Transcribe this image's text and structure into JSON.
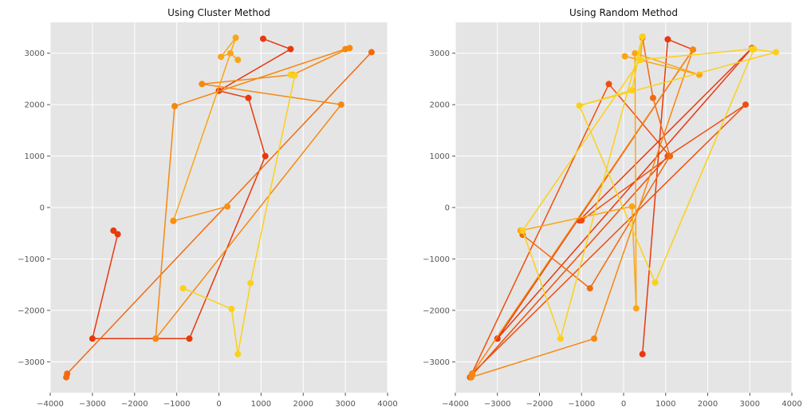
{
  "chart_data": [
    {
      "type": "line",
      "title": "Using Cluster Method",
      "xlim": [
        -4000,
        4000
      ],
      "ylim": [
        -3600,
        3600
      ],
      "xticks": [
        -4000,
        -3000,
        -2000,
        -1000,
        0,
        1000,
        2000,
        3000,
        4000
      ],
      "yticks": [
        -3000,
        -2000,
        -1000,
        0,
        1000,
        2000,
        3000
      ],
      "grid": true,
      "series": [
        {
          "color": "#e8380d",
          "x": [
            -2500,
            -2400,
            -3000,
            -700,
            1100,
            700,
            0,
            1700,
            1050
          ],
          "y": [
            -450,
            -520,
            -2550,
            -2550,
            1000,
            2130,
            2270,
            3080,
            3280
          ]
        },
        {
          "color": "#f26a10",
          "x": [
            -3620,
            -3600,
            3620
          ],
          "y": [
            -3300,
            -3230,
            3020
          ]
        },
        {
          "color": "#f7870f",
          "x": [
            -1500,
            2900,
            -400,
            1750,
            3100,
            3000,
            -1050,
            -1500
          ],
          "y": [
            -2550,
            2000,
            2400,
            2580,
            3100,
            3080,
            1970,
            -2550
          ]
        },
        {
          "color": "#fba514",
          "x": [
            -1080,
            400,
            50,
            270,
            450
          ],
          "y": [
            -260,
            3300,
            2930,
            3000,
            2870
          ]
        },
        {
          "color": "#f99010",
          "x": [
            200,
            -1080
          ],
          "y": [
            20,
            -260
          ]
        },
        {
          "color": "#fcd019",
          "x": [
            -850,
            300,
            450,
            750,
            1800,
            1700
          ],
          "y": [
            -1570,
            -1970,
            -2850,
            -1470,
            2570,
            2580
          ]
        }
      ]
    },
    {
      "type": "line",
      "title": "Using Random Method",
      "xlim": [
        -4000,
        4000
      ],
      "ylim": [
        -3600,
        3600
      ],
      "xticks": [
        -4000,
        -3000,
        -2000,
        -1000,
        0,
        1000,
        2000,
        3000,
        4000
      ],
      "yticks": [
        -3000,
        -2000,
        -1000,
        0,
        1000,
        2000,
        3000
      ],
      "grid": true,
      "series": [
        {
          "color": "#e8380d",
          "x": [
            450,
            1050,
            1650,
            -3000,
            3050,
            -1050
          ],
          "y": [
            -2850,
            3270,
            3070,
            -2550,
            3100,
            -250
          ]
        },
        {
          "color": "#f04e0e",
          "x": [
            -1000,
            1100,
            -350,
            -3650,
            1050,
            2900,
            -3600
          ],
          "y": [
            -250,
            1000,
            2400,
            -3300,
            1000,
            2000,
            -3230
          ]
        },
        {
          "color": "#f26a10",
          "x": [
            -2400,
            -800,
            1100,
            700,
            450
          ],
          "y": [
            -530,
            -1570,
            1000,
            2130,
            3300
          ]
        },
        {
          "color": "#f7870f",
          "x": [
            -3620,
            -700,
            1650,
            -3600
          ],
          "y": [
            -3300,
            -2550,
            3070,
            -3230
          ]
        },
        {
          "color": "#fba514",
          "x": [
            450,
            400,
            30,
            1800,
            270,
            300,
            200,
            -2450
          ],
          "y": [
            3320,
            2870,
            2940,
            2580,
            3000,
            -1960,
            20,
            -450
          ]
        },
        {
          "color": "#fcd019",
          "x": [
            -1050,
            200,
            450,
            -1500,
            -2400,
            400,
            3050,
            3620,
            -1050,
            750,
            3100
          ],
          "y": [
            1980,
            2280,
            3320,
            -2550,
            -450,
            2870,
            3080,
            3020,
            1980,
            -1460,
            3080
          ]
        }
      ]
    }
  ]
}
